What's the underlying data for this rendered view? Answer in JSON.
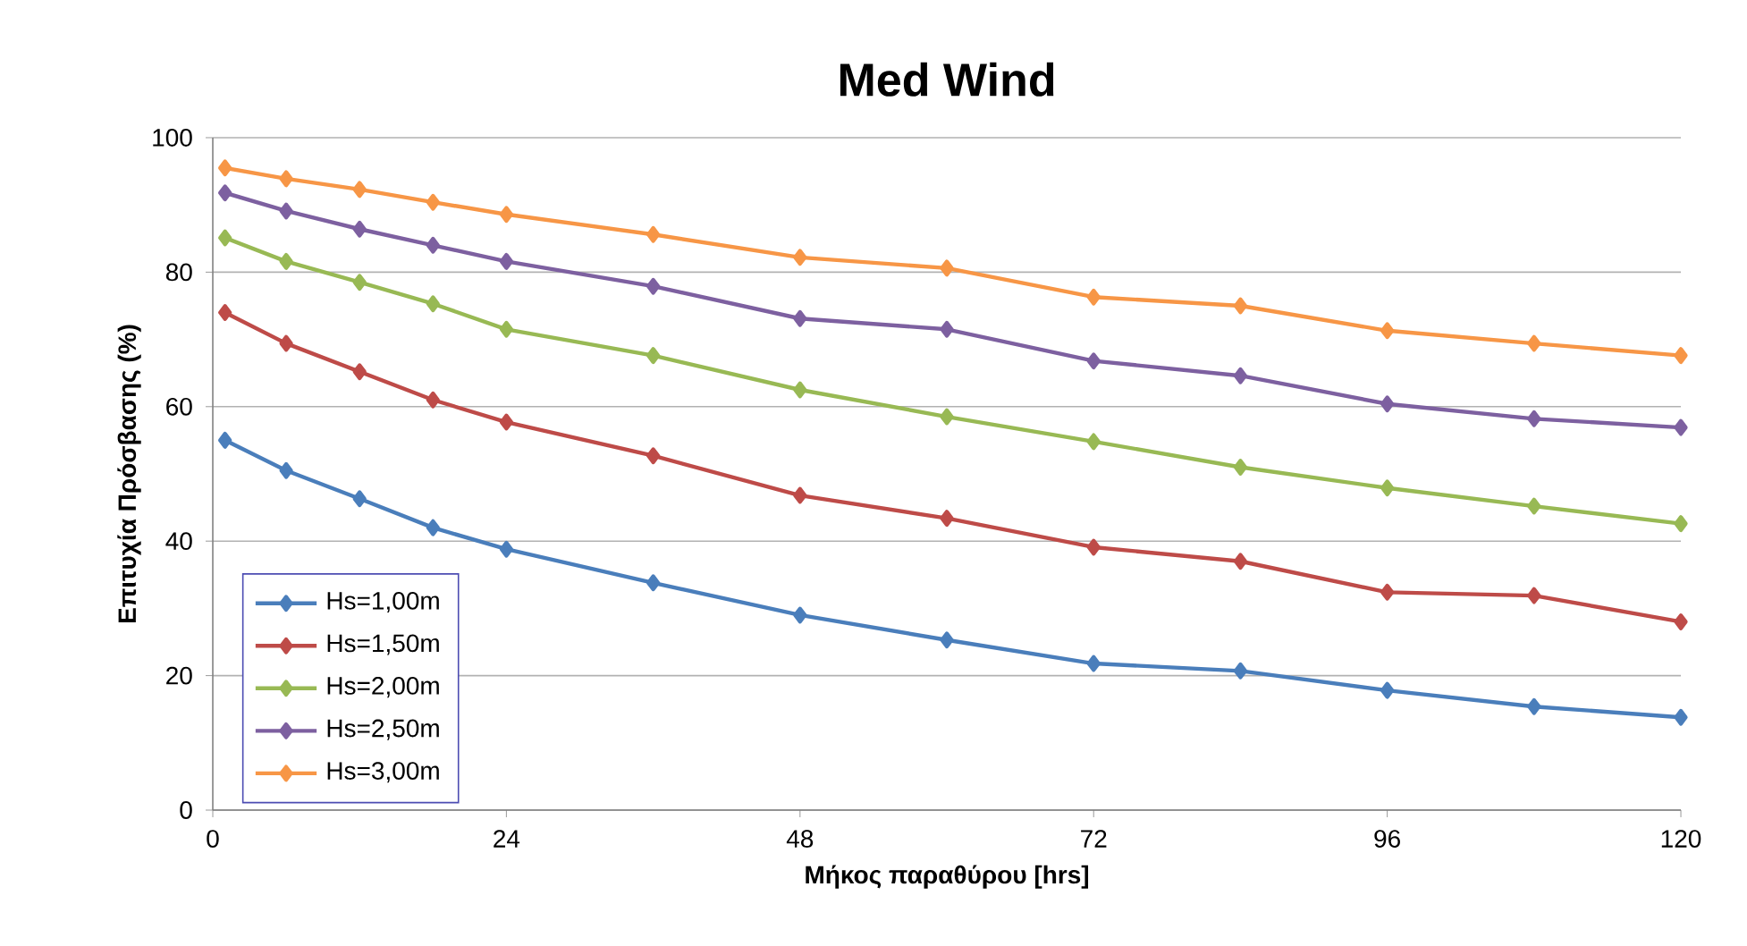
{
  "chart_data": {
    "type": "line",
    "title": "Med Wind",
    "xlabel": "Μήκος παραθύρου [hrs]",
    "ylabel": "Επιτυχία Πρόσβασης (%)",
    "x": [
      1,
      6,
      12,
      18,
      24,
      36,
      48,
      60,
      72,
      84,
      96,
      108,
      120
    ],
    "xlim": [
      0,
      120
    ],
    "xticks": [
      0,
      24,
      48,
      72,
      96,
      120
    ],
    "ylim": [
      0,
      100
    ],
    "yticks": [
      0,
      20,
      40,
      60,
      80,
      100
    ],
    "grid": "y",
    "legend": "bottom left",
    "marker": "diamond",
    "line_style": "solid",
    "series": [
      {
        "name": "Hs=1,00m",
        "color": "#4a7ebb",
        "values": [
          55,
          50.5,
          46.3,
          42,
          38.8,
          33.8,
          29,
          25.3,
          21.8,
          20.7,
          17.8,
          15.4,
          13.8
        ]
      },
      {
        "name": "Hs=1,50m",
        "color": "#be4b48",
        "values": [
          74,
          69.4,
          65.2,
          61,
          57.7,
          52.7,
          46.8,
          43.4,
          39.1,
          37,
          32.4,
          31.9,
          28
        ]
      },
      {
        "name": "Hs=2,00m",
        "color": "#98b954",
        "values": [
          85.1,
          81.6,
          78.5,
          75.3,
          71.5,
          67.6,
          62.5,
          58.5,
          54.8,
          51,
          47.9,
          45.2,
          42.6
        ]
      },
      {
        "name": "Hs=2,50m",
        "color": "#7d60a0",
        "values": [
          91.8,
          89.1,
          86.4,
          84,
          81.6,
          77.9,
          73.1,
          71.5,
          66.8,
          64.6,
          60.4,
          58.2,
          56.9
        ]
      },
      {
        "name": "Hs=3,00m",
        "color": "#f79646",
        "values": [
          95.5,
          93.9,
          92.3,
          90.4,
          88.6,
          85.6,
          82.2,
          80.6,
          76.3,
          75,
          71.3,
          69.4,
          67.6
        ]
      }
    ]
  }
}
